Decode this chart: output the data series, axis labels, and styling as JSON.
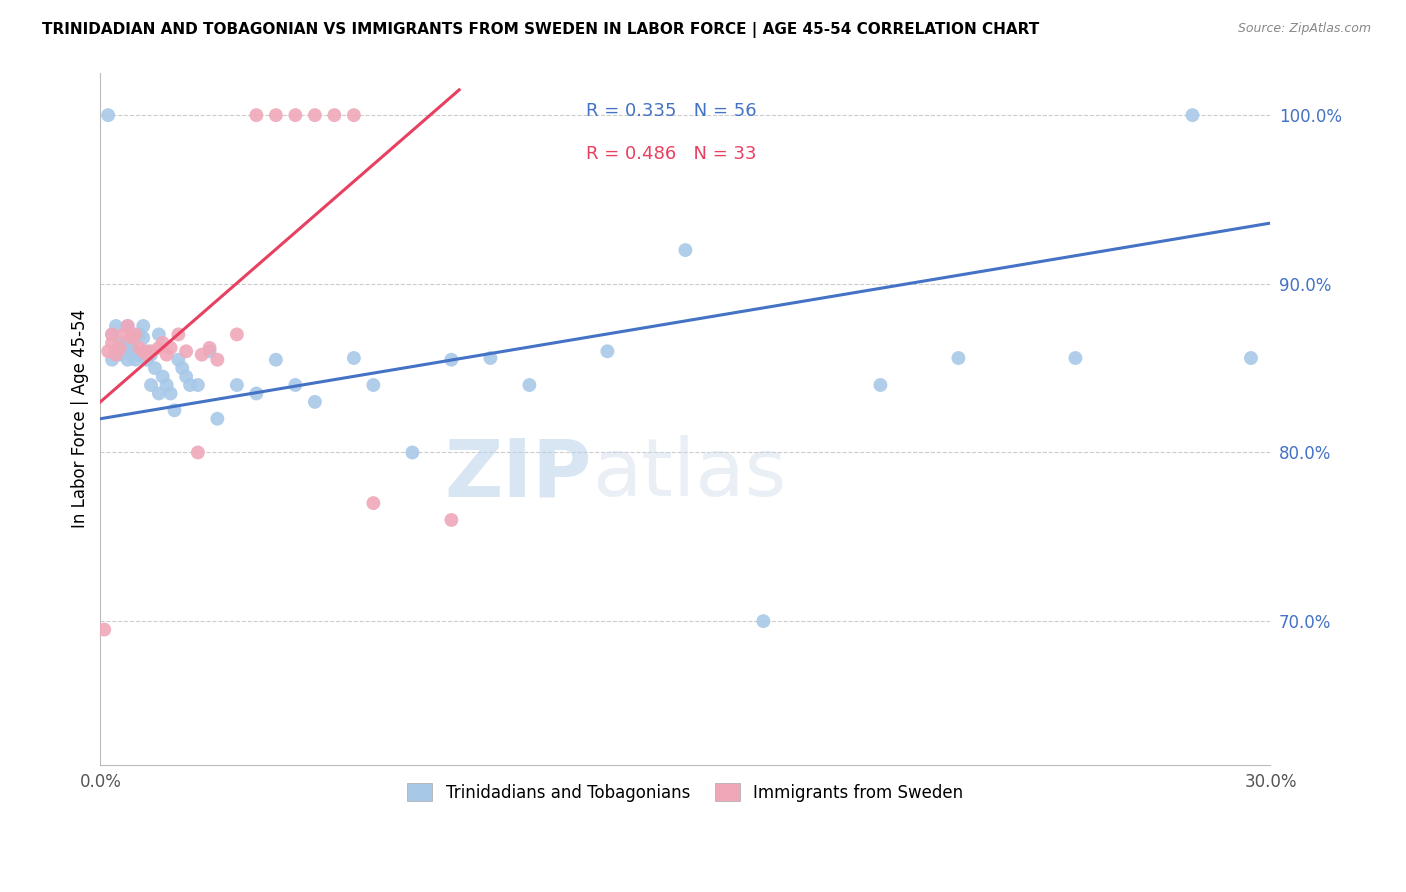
{
  "title": "TRINIDADIAN AND TOBAGONIAN VS IMMIGRANTS FROM SWEDEN IN LABOR FORCE | AGE 45-54 CORRELATION CHART",
  "source": "Source: ZipAtlas.com",
  "ylabel": "In Labor Force | Age 45-54",
  "legend_label_blue": "Trinidadians and Tobagonians",
  "legend_label_pink": "Immigrants from Sweden",
  "xmin": 0.0,
  "xmax": 0.3,
  "ymin": 0.615,
  "ymax": 1.025,
  "xticks": [
    0.0,
    0.05,
    0.1,
    0.15,
    0.2,
    0.25,
    0.3
  ],
  "xtick_labels": [
    "0.0%",
    "",
    "",
    "",
    "",
    "",
    "30.0%"
  ],
  "yticks": [
    0.7,
    0.8,
    0.9,
    1.0
  ],
  "ytick_labels": [
    "70.0%",
    "80.0%",
    "90.0%",
    "100.0%"
  ],
  "color_blue": "#A8C8E8",
  "color_pink": "#F0A8B8",
  "line_color_blue": "#4472C4",
  "line_color_pink": "#E84060",
  "watermark_zip": "ZIP",
  "watermark_atlas": "atlas",
  "blue_scatter_x": [
    0.002,
    0.003,
    0.003,
    0.004,
    0.004,
    0.005,
    0.005,
    0.006,
    0.006,
    0.007,
    0.007,
    0.008,
    0.008,
    0.009,
    0.009,
    0.01,
    0.01,
    0.011,
    0.011,
    0.012,
    0.012,
    0.013,
    0.013,
    0.014,
    0.015,
    0.015,
    0.016,
    0.017,
    0.018,
    0.019,
    0.02,
    0.021,
    0.022,
    0.023,
    0.025,
    0.028,
    0.03,
    0.035,
    0.04,
    0.045,
    0.05,
    0.055,
    0.065,
    0.07,
    0.08,
    0.09,
    0.1,
    0.11,
    0.13,
    0.15,
    0.17,
    0.2,
    0.22,
    0.25,
    0.28,
    0.295
  ],
  "blue_scatter_y": [
    1.0,
    0.87,
    0.855,
    0.875,
    0.86,
    0.858,
    0.865,
    0.86,
    0.862,
    0.875,
    0.855,
    0.865,
    0.858,
    0.86,
    0.855,
    0.87,
    0.858,
    0.868,
    0.875,
    0.86,
    0.855,
    0.858,
    0.84,
    0.85,
    0.87,
    0.835,
    0.845,
    0.84,
    0.835,
    0.825,
    0.855,
    0.85,
    0.845,
    0.84,
    0.84,
    0.86,
    0.82,
    0.84,
    0.835,
    0.855,
    0.84,
    0.83,
    0.856,
    0.84,
    0.8,
    0.855,
    0.856,
    0.84,
    0.86,
    0.92,
    0.7,
    0.84,
    0.856,
    0.856,
    1.0,
    0.856
  ],
  "pink_scatter_x": [
    0.001,
    0.002,
    0.003,
    0.003,
    0.004,
    0.005,
    0.006,
    0.007,
    0.008,
    0.009,
    0.01,
    0.011,
    0.012,
    0.013,
    0.015,
    0.016,
    0.017,
    0.018,
    0.02,
    0.022,
    0.025,
    0.026,
    0.028,
    0.03,
    0.035,
    0.04,
    0.045,
    0.05,
    0.055,
    0.06,
    0.065,
    0.07,
    0.09
  ],
  "pink_scatter_y": [
    0.695,
    0.86,
    0.865,
    0.87,
    0.858,
    0.862,
    0.87,
    0.875,
    0.868,
    0.87,
    0.862,
    0.86,
    0.858,
    0.86,
    0.862,
    0.865,
    0.858,
    0.862,
    0.87,
    0.86,
    0.8,
    0.858,
    0.862,
    0.855,
    0.87,
    1.0,
    1.0,
    1.0,
    1.0,
    1.0,
    1.0,
    0.77,
    0.76
  ],
  "blue_trend_x": [
    0.0,
    0.3
  ],
  "blue_trend_y": [
    0.82,
    0.936
  ],
  "pink_trend_x": [
    0.0,
    0.092
  ],
  "pink_trend_y": [
    0.83,
    1.015
  ]
}
